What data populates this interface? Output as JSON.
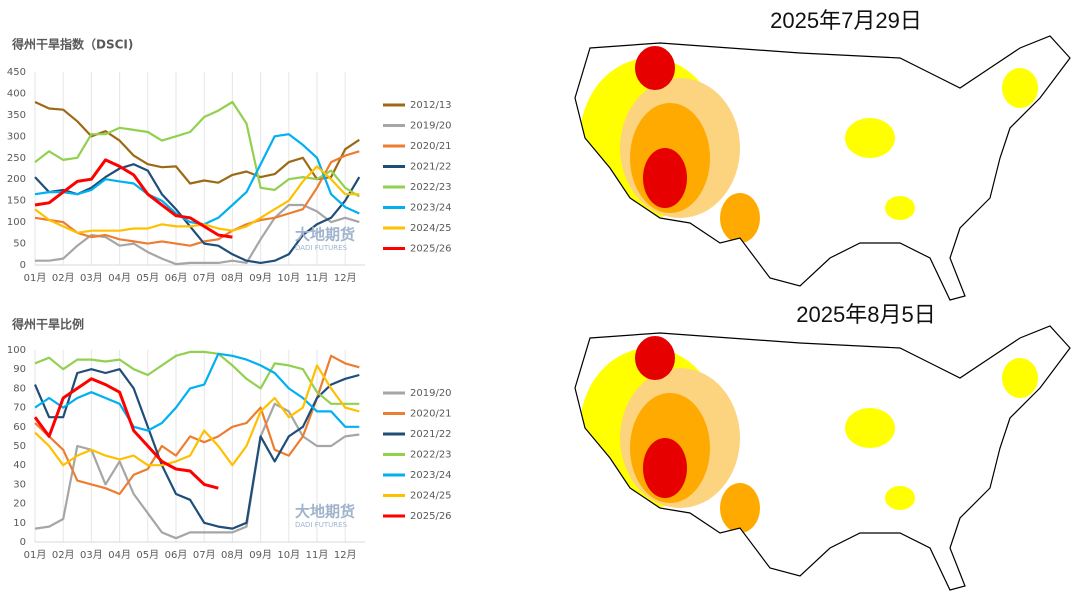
{
  "chart_data": [
    {
      "type": "line",
      "title": "得州干旱指数（DSCI)",
      "categories": [
        "01月",
        null,
        "02月",
        null,
        "03月",
        null,
        "04月",
        null,
        "05月",
        null,
        "06月",
        null,
        "07月",
        null,
        "08月",
        null,
        "09月",
        null,
        "10月",
        null,
        "11月",
        null,
        "12月",
        null
      ],
      "ylim": [
        0,
        450
      ],
      "yticks": [
        0,
        50,
        100,
        150,
        200,
        250,
        300,
        350,
        400,
        450
      ],
      "grid": true,
      "series": [
        {
          "name": "2012/13",
          "color": "#9c6a14",
          "values": [
            380,
            365,
            362,
            335,
            300,
            312,
            290,
            255,
            235,
            228,
            230,
            190,
            197,
            192,
            210,
            218,
            205,
            212,
            240,
            250,
            200,
            205,
            270,
            292
          ]
        },
        {
          "name": "2019/20",
          "color": "#a6a6a6",
          "values": [
            10,
            10,
            15,
            45,
            70,
            65,
            45,
            50,
            30,
            15,
            2,
            5,
            5,
            5,
            10,
            5,
            60,
            110,
            140,
            140,
            125,
            100,
            110,
            100
          ]
        },
        {
          "name": "2020/21",
          "color": "#ed7d31",
          "values": [
            110,
            105,
            100,
            75,
            65,
            70,
            60,
            55,
            50,
            55,
            50,
            45,
            55,
            60,
            80,
            95,
            105,
            110,
            120,
            130,
            180,
            240,
            255,
            265
          ]
        },
        {
          "name": "2021/22",
          "color": "#1f4e79",
          "values": [
            205,
            170,
            175,
            165,
            180,
            205,
            225,
            235,
            220,
            165,
            130,
            90,
            50,
            45,
            25,
            10,
            5,
            10,
            25,
            70,
            95,
            110,
            150,
            205
          ]
        },
        {
          "name": "2022/23",
          "color": "#92d050",
          "values": [
            240,
            265,
            245,
            250,
            305,
            305,
            320,
            315,
            310,
            290,
            300,
            310,
            345,
            360,
            380,
            330,
            180,
            175,
            200,
            205,
            200,
            220,
            180,
            160
          ]
        },
        {
          "name": "2023/24",
          "color": "#00b0f0",
          "values": [
            165,
            170,
            170,
            165,
            175,
            200,
            195,
            190,
            165,
            150,
            120,
            100,
            95,
            110,
            140,
            170,
            235,
            300,
            305,
            280,
            250,
            165,
            135,
            120
          ]
        },
        {
          "name": "2024/25",
          "color": "#ffc000",
          "values": [
            130,
            105,
            90,
            75,
            80,
            80,
            80,
            85,
            85,
            95,
            90,
            90,
            95,
            85,
            80,
            90,
            110,
            130,
            150,
            195,
            230,
            200,
            165,
            165
          ]
        },
        {
          "name": "2025/26",
          "color": "#ff0000",
          "values": [
            140,
            145,
            170,
            195,
            200,
            245,
            230,
            210,
            165,
            140,
            115,
            110,
            90,
            70,
            65,
            null,
            null,
            null,
            null,
            null,
            null,
            null,
            null,
            null
          ]
        }
      ]
    },
    {
      "type": "line",
      "title": "得州干旱比例",
      "categories": [
        "01月",
        null,
        "02月",
        null,
        "03月",
        null,
        "04月",
        null,
        "05月",
        null,
        "06月",
        null,
        "07月",
        null,
        "08月",
        null,
        "09月",
        null,
        "10月",
        null,
        "11月",
        null,
        "12月",
        null
      ],
      "ylim": [
        0,
        100
      ],
      "yticks": [
        0,
        10,
        20,
        30,
        40,
        50,
        60,
        70,
        80,
        90,
        100
      ],
      "grid": true,
      "series": [
        {
          "name": "2019/20",
          "color": "#a6a6a6",
          "values": [
            7,
            8,
            12,
            50,
            48,
            30,
            42,
            25,
            15,
            5,
            2,
            5,
            5,
            5,
            5,
            8,
            55,
            72,
            68,
            55,
            50,
            50,
            55,
            56
          ]
        },
        {
          "name": "2020/21",
          "color": "#ed7d31",
          "values": [
            62,
            55,
            48,
            32,
            30,
            28,
            25,
            35,
            38,
            50,
            45,
            55,
            52,
            55,
            60,
            62,
            70,
            48,
            45,
            55,
            75,
            97,
            93,
            91
          ]
        },
        {
          "name": "2021/22",
          "color": "#1f4e79",
          "values": [
            82,
            65,
            65,
            88,
            90,
            88,
            90,
            80,
            60,
            40,
            25,
            22,
            10,
            8,
            7,
            10,
            55,
            42,
            55,
            60,
            75,
            82,
            85,
            87
          ]
        },
        {
          "name": "2022/23",
          "color": "#92d050",
          "values": [
            93,
            96,
            90,
            95,
            95,
            94,
            95,
            90,
            87,
            92,
            97,
            99,
            99,
            98,
            92,
            85,
            80,
            93,
            92,
            90,
            78,
            72,
            72,
            72
          ]
        },
        {
          "name": "2023/24",
          "color": "#00b0f0",
          "values": [
            70,
            75,
            70,
            75,
            78,
            75,
            72,
            60,
            58,
            62,
            70,
            80,
            82,
            98,
            97,
            95,
            92,
            88,
            80,
            75,
            68,
            68,
            60,
            60
          ]
        },
        {
          "name": "2024/25",
          "color": "#ffc000",
          "values": [
            57,
            50,
            40,
            45,
            48,
            45,
            43,
            45,
            40,
            40,
            42,
            45,
            58,
            50,
            40,
            50,
            68,
            75,
            65,
            70,
            92,
            80,
            70,
            68
          ]
        },
        {
          "name": "2025/26",
          "color": "#ff0000",
          "values": [
            65,
            55,
            75,
            80,
            85,
            82,
            78,
            58,
            50,
            42,
            38,
            37,
            30,
            28,
            null,
            null,
            null,
            null,
            null,
            null,
            null,
            null,
            null,
            null
          ]
        }
      ]
    }
  ],
  "watermark": {
    "name": "大地期货",
    "sub": "DADI FUTURES"
  },
  "maps": [
    {
      "title": "2025年7月29日"
    },
    {
      "title": "2025年8月5日"
    }
  ]
}
